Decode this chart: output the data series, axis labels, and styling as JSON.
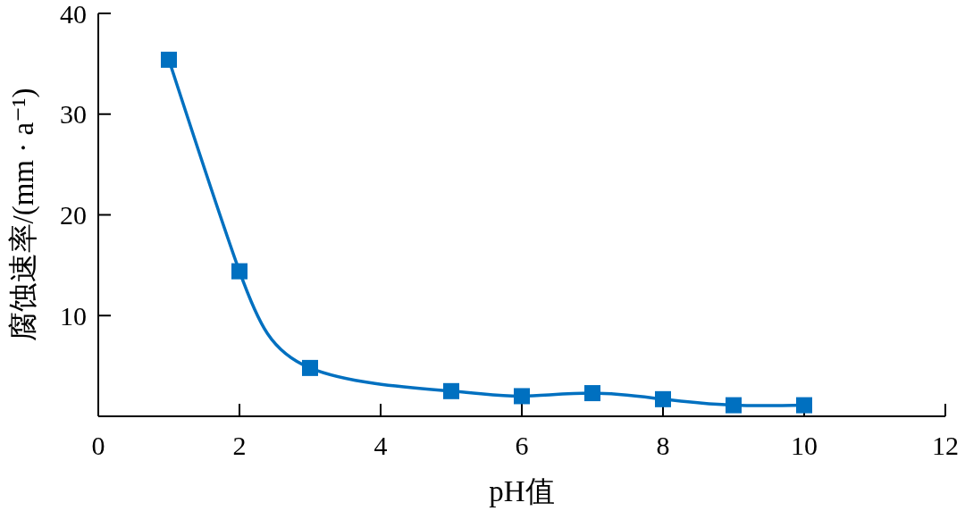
{
  "chart_data": {
    "type": "line",
    "xlabel": "pH值",
    "ylabel": "腐蚀速率/(mm · a⁻¹)",
    "x": [
      1,
      2,
      3,
      5,
      6,
      7,
      8,
      9,
      10
    ],
    "series": [
      {
        "color": "#0070c0",
        "values": [
          35.4,
          14.4,
          4.8,
          2.5,
          2.0,
          2.3,
          1.7,
          1.1,
          1.1
        ]
      }
    ],
    "xlim": [
      0,
      12
    ],
    "xticks": [
      0,
      2,
      4,
      6,
      8,
      10,
      12
    ],
    "ylim": [
      0,
      40
    ],
    "yticks": [
      10,
      20,
      30,
      40
    ],
    "grid": false,
    "legend": false,
    "marker": "square",
    "line_style": "solid"
  }
}
